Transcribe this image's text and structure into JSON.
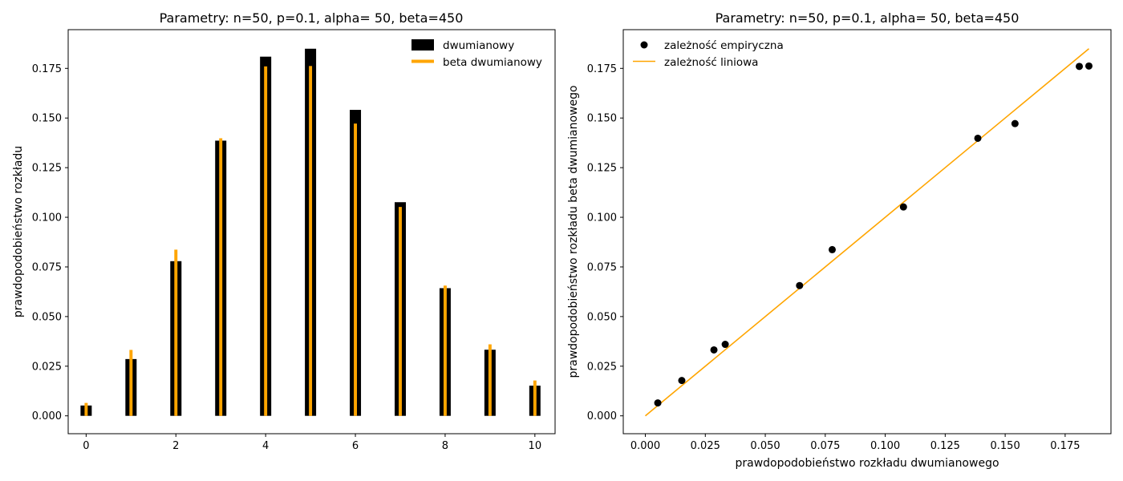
{
  "chart_data": [
    {
      "type": "bar",
      "title": "Parametry: n=50, p=0.1, alpha= 50, beta=450",
      "xlabel": "",
      "ylabel": "prawdopodobieństwo rozkładu",
      "xlim": [
        -0.4,
        10.45
      ],
      "ylim": [
        -0.009,
        0.1945
      ],
      "x_ticks": [
        0,
        2,
        4,
        6,
        8,
        10
      ],
      "y_ticks": [
        0.0,
        0.025,
        0.05,
        0.075,
        0.1,
        0.125,
        0.15,
        0.175
      ],
      "y_tick_labels": [
        "0.000",
        "0.025",
        "0.050",
        "0.075",
        "0.100",
        "0.125",
        "0.150",
        "0.175"
      ],
      "legend_position": "top-right",
      "categories": [
        0,
        1,
        2,
        3,
        4,
        5,
        6,
        7,
        8,
        9,
        10
      ],
      "series": [
        {
          "name": "dwumianowy",
          "color": "#000000",
          "values": [
            0.0052,
            0.0286,
            0.0779,
            0.1386,
            0.1809,
            0.1849,
            0.1541,
            0.1076,
            0.0643,
            0.0333,
            0.0152
          ]
        },
        {
          "name": "beta dwumianowy",
          "color": "#ffa500",
          "values": [
            0.0065,
            0.0332,
            0.0837,
            0.1398,
            0.176,
            0.1762,
            0.1472,
            0.1052,
            0.0656,
            0.036,
            0.0178
          ]
        }
      ],
      "grid": false
    },
    {
      "type": "scatter",
      "title": "Parametry: n=50, p=0.1, alpha= 50, beta=450",
      "xlabel": "prawdopodobieństwo rozkładu dwumianowego",
      "ylabel": "prawdopodobieństwo rozkładu beta dwumianowego",
      "xlim": [
        -0.0092,
        0.1941
      ],
      "ylim": [
        -0.009,
        0.1945
      ],
      "x_ticks": [
        0.0,
        0.025,
        0.05,
        0.075,
        0.1,
        0.125,
        0.15,
        0.175
      ],
      "x_tick_labels": [
        "0.000",
        "0.025",
        "0.050",
        "0.075",
        "0.100",
        "0.125",
        "0.150",
        "0.175"
      ],
      "y_ticks": [
        0.0,
        0.025,
        0.05,
        0.075,
        0.1,
        0.125,
        0.15,
        0.175
      ],
      "y_tick_labels": [
        "0.000",
        "0.025",
        "0.050",
        "0.075",
        "0.100",
        "0.125",
        "0.150",
        "0.175"
      ],
      "legend_position": "top-left",
      "series": [
        {
          "name": "zależność empiryczna",
          "color": "#000000",
          "x": [
            0.0052,
            0.0152,
            0.0286,
            0.0333,
            0.0643,
            0.0779,
            0.1076,
            0.1386,
            0.1541,
            0.1809,
            0.1849
          ],
          "y": [
            0.0065,
            0.0178,
            0.0332,
            0.036,
            0.0656,
            0.0837,
            0.1052,
            0.1398,
            0.1472,
            0.176,
            0.1762
          ]
        },
        {
          "name": "zależność liniowa",
          "color": "#ffa500",
          "x": [
            0.0,
            0.1849
          ],
          "y": [
            0.0,
            0.1849
          ]
        }
      ],
      "grid": false
    }
  ]
}
